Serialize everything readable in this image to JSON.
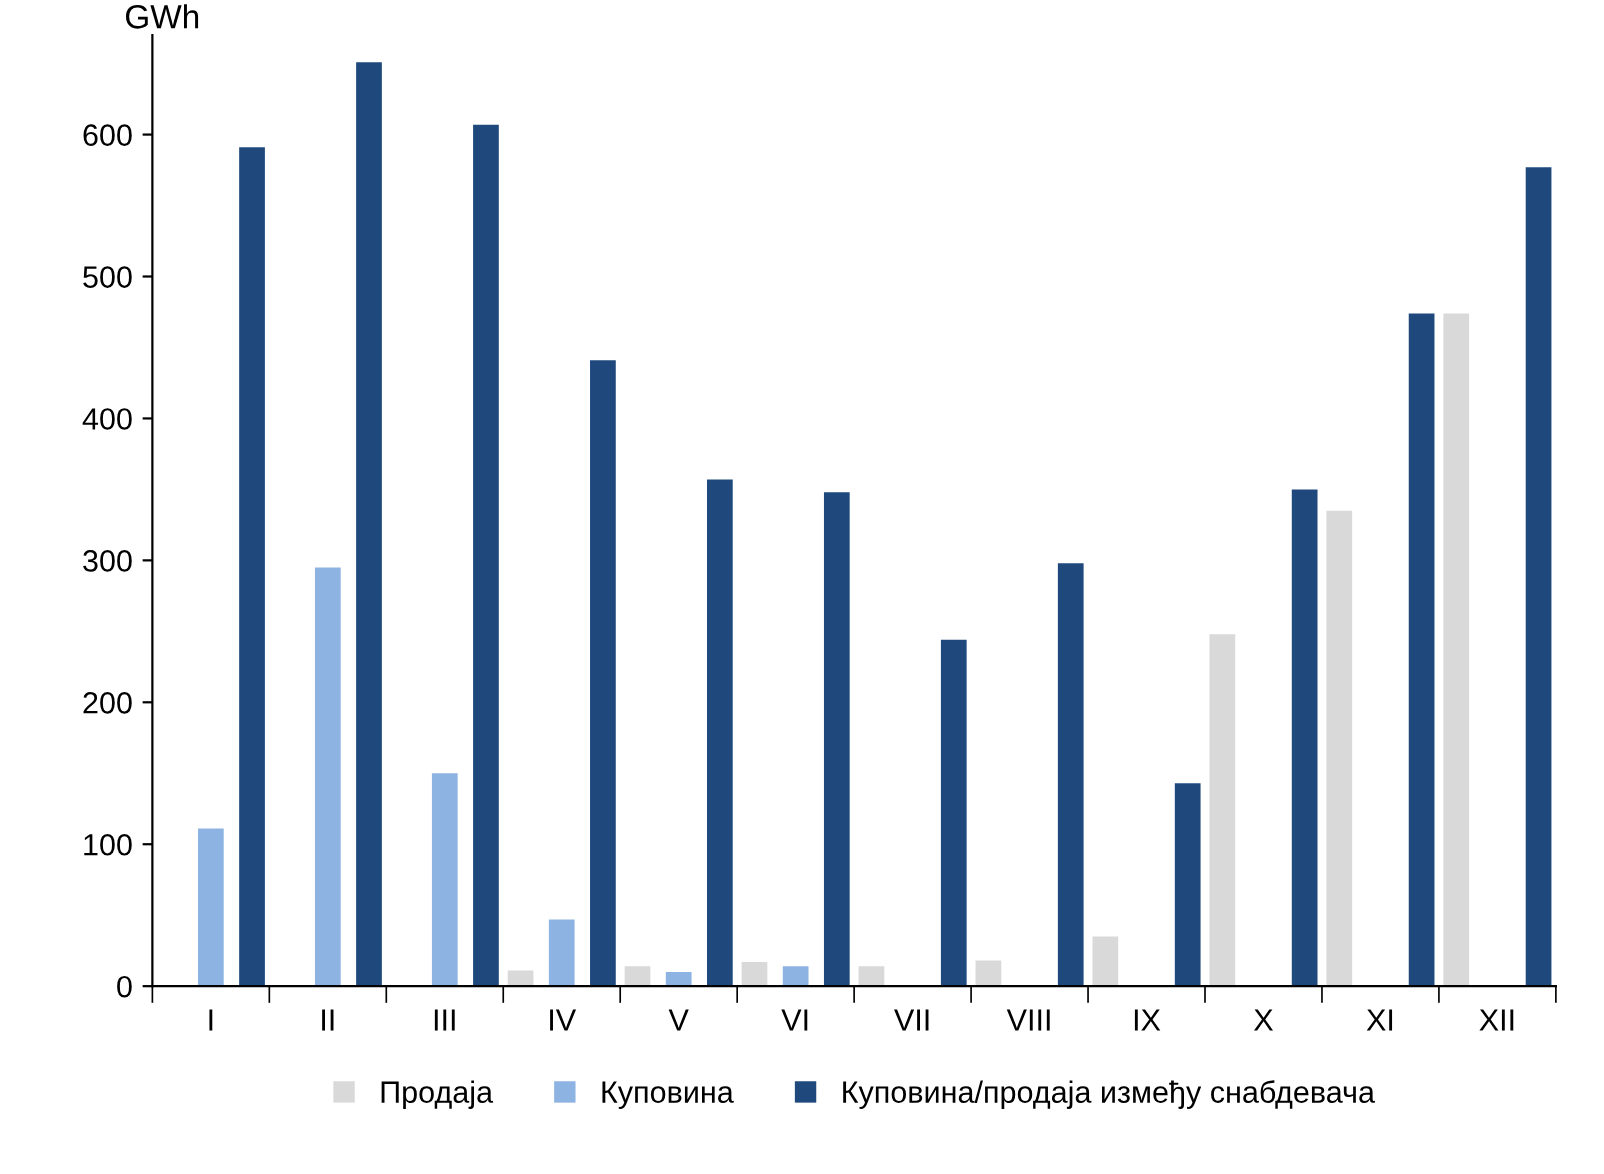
{
  "chart_data": {
    "type": "bar",
    "ylabel": "GWh",
    "categories": [
      "I",
      "II",
      "III",
      "IV",
      "V",
      "VI",
      "VII",
      "VIII",
      "IX",
      "X",
      "XI",
      "XII"
    ],
    "series": [
      {
        "name": "Продаја",
        "color": "#d9d9d9",
        "values": [
          null,
          null,
          null,
          11,
          14,
          17,
          14,
          18,
          35,
          248,
          335,
          474
        ]
      },
      {
        "name": "Куповина",
        "color": "#8db3e2",
        "values": [
          111,
          295,
          150,
          47,
          10,
          14,
          null,
          null,
          null,
          null,
          null,
          null
        ]
      },
      {
        "name": "Куповина/продаја између снабдевача",
        "color": "#1f497d",
        "values": [
          591,
          651,
          607,
          441,
          357,
          348,
          244,
          298,
          143,
          350,
          474,
          577
        ]
      }
    ],
    "ylim": [
      0,
      670
    ],
    "yticks": [
      0,
      100,
      200,
      300,
      400,
      500,
      600
    ],
    "grid": false,
    "legend": "bottom"
  }
}
